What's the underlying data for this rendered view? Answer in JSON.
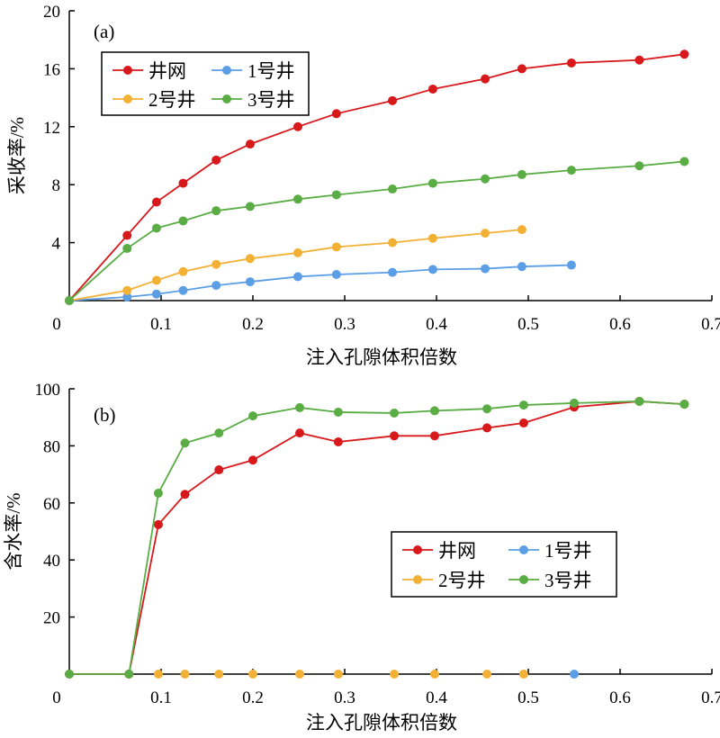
{
  "chart_data": [
    {
      "type": "line",
      "panel_label": "(a)",
      "xlabel": "注入孔隙体积倍数",
      "ylabel": "采收率/%",
      "xlim": [
        0,
        0.7
      ],
      "ylim": [
        0,
        20
      ],
      "xticks": [
        "0",
        "0.1",
        "0.2",
        "0.3",
        "0.4",
        "0.5",
        "0.6",
        "0.7"
      ],
      "yticks": [
        "4",
        "8",
        "12",
        "16",
        "20"
      ],
      "legend_position": "top-left",
      "series": [
        {
          "name": "井网",
          "color": "#d7191c",
          "x": [
            0,
            0.063,
            0.095,
            0.124,
            0.16,
            0.197,
            0.249,
            0.291,
            0.352,
            0.396,
            0.453,
            0.493,
            0.547,
            0.621,
            0.67
          ],
          "y": [
            0,
            4.5,
            6.8,
            8.1,
            9.7,
            10.8,
            12.0,
            12.9,
            13.8,
            14.6,
            15.3,
            16.0,
            16.4,
            16.6,
            17.0
          ]
        },
        {
          "name": "1号井",
          "color": "#5b9ee6",
          "x": [
            0,
            0.063,
            0.095,
            0.124,
            0.16,
            0.197,
            0.249,
            0.291,
            0.352,
            0.396,
            0.453,
            0.493,
            0.547
          ],
          "y": [
            0,
            0.25,
            0.45,
            0.7,
            1.05,
            1.3,
            1.65,
            1.8,
            1.95,
            2.15,
            2.2,
            2.35,
            2.45
          ]
        },
        {
          "name": "2号井",
          "color": "#f2b134",
          "x": [
            0,
            0.063,
            0.095,
            0.124,
            0.16,
            0.197,
            0.249,
            0.291,
            0.352,
            0.396,
            0.453,
            0.493
          ],
          "y": [
            0,
            0.7,
            1.4,
            2.0,
            2.5,
            2.9,
            3.3,
            3.7,
            4.0,
            4.3,
            4.65,
            4.9
          ]
        },
        {
          "name": "3号井",
          "color": "#5aac44",
          "x": [
            0,
            0.063,
            0.095,
            0.124,
            0.16,
            0.197,
            0.249,
            0.291,
            0.352,
            0.396,
            0.453,
            0.493,
            0.547,
            0.621,
            0.67
          ],
          "y": [
            0,
            3.6,
            5.0,
            5.5,
            6.2,
            6.5,
            7.0,
            7.3,
            7.7,
            8.1,
            8.4,
            8.7,
            9.0,
            9.3,
            9.6
          ]
        }
      ]
    },
    {
      "type": "line",
      "panel_label": "(b)",
      "xlabel": "注入孔隙体积倍数",
      "ylabel": "含水率/%",
      "xlim": [
        0,
        0.7
      ],
      "ylim": [
        0,
        100
      ],
      "xticks": [
        "0",
        "0.1",
        "0.2",
        "0.3",
        "0.4",
        "0.5",
        "0.6",
        "0.7"
      ],
      "yticks": [
        "20",
        "40",
        "60",
        "80",
        "100"
      ],
      "legend_position": "center-right",
      "series": [
        {
          "name": "井网",
          "color": "#d7191c",
          "x": [
            0,
            0.065,
            0.097,
            0.126,
            0.163,
            0.2,
            0.251,
            0.293,
            0.354,
            0.398,
            0.455,
            0.495,
            0.55,
            0.621,
            0.67
          ],
          "y": [
            0,
            0,
            52.4,
            63,
            71.6,
            75,
            84.5,
            81.4,
            83.5,
            83.5,
            86.3,
            88,
            93.6,
            95.6,
            94.6
          ]
        },
        {
          "name": "1号井",
          "color": "#5b9ee6",
          "x": [
            0.55
          ],
          "y": [
            0
          ]
        },
        {
          "name": "2号井",
          "color": "#f2b134",
          "x": [
            0.097,
            0.126,
            0.163,
            0.2,
            0.251,
            0.293,
            0.354,
            0.398,
            0.455,
            0.495
          ],
          "y": [
            0,
            0,
            0,
            0,
            0,
            0,
            0,
            0,
            0,
            0
          ]
        },
        {
          "name": "3号井",
          "color": "#5aac44",
          "x": [
            0,
            0.065,
            0.097,
            0.126,
            0.163,
            0.2,
            0.251,
            0.293,
            0.354,
            0.398,
            0.455,
            0.495,
            0.55,
            0.621,
            0.67
          ],
          "y": [
            0,
            0,
            63.4,
            81,
            84.5,
            90.5,
            93.4,
            91.8,
            91.5,
            92.3,
            93,
            94.3,
            95,
            95.6,
            94.6
          ]
        }
      ]
    }
  ]
}
